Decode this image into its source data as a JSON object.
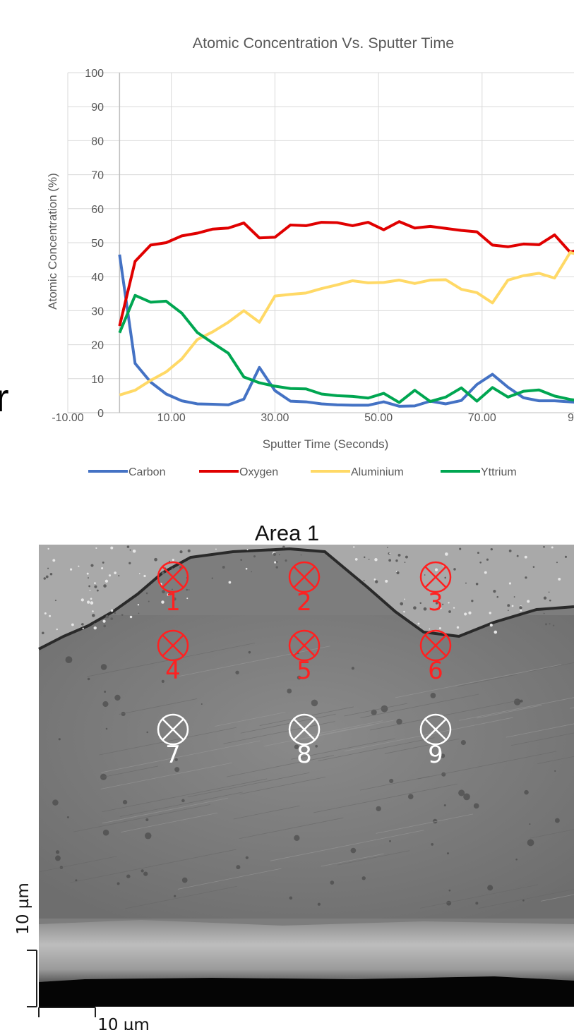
{
  "chart_data": {
    "type": "line",
    "title": "Atomic Concentration Vs. Sputter Time",
    "xlabel": "Sputter Time (Seconds)",
    "ylabel": "Atomic Concentration (%)",
    "xlim": [
      -10,
      90
    ],
    "ylim": [
      0,
      100
    ],
    "x_ticks": [
      "-10.00",
      "10.00",
      "30.00",
      "50.00",
      "70.00",
      "9"
    ],
    "y_ticks": [
      "0",
      "10",
      "20",
      "30",
      "40",
      "50",
      "60",
      "70",
      "80",
      "90",
      "100"
    ],
    "grid": true,
    "legend_position": "bottom",
    "x": [
      0,
      3,
      6,
      9,
      12,
      15,
      18,
      21,
      24,
      27,
      30,
      33,
      36,
      39,
      42,
      45,
      48,
      51,
      54,
      57,
      60,
      63,
      66,
      69,
      72,
      75,
      78,
      81,
      84,
      87,
      90
    ],
    "series": [
      {
        "name": "Carbon",
        "color": "#4472C4",
        "values": [
          46.5,
          14.5,
          9.0,
          5.5,
          3.5,
          2.6,
          2.5,
          2.3,
          4.0,
          13.3,
          6.5,
          3.4,
          3.2,
          2.6,
          2.3,
          2.2,
          2.2,
          3.2,
          1.9,
          2.0,
          3.4,
          2.6,
          3.6,
          8.3,
          11.3,
          7.5,
          4.4,
          3.5,
          3.5,
          3.2,
          2.9
        ]
      },
      {
        "name": "Oxygen",
        "color": "#E00000",
        "values": [
          25.5,
          44.5,
          49.3,
          50.0,
          52.0,
          52.8,
          54.0,
          54.3,
          55.8,
          51.4,
          51.6,
          55.2,
          55.0,
          56.0,
          55.9,
          55.0,
          56.0,
          53.8,
          56.2,
          54.3,
          54.8,
          54.2,
          53.6,
          53.2,
          49.3,
          48.8,
          49.6,
          49.4,
          52.3,
          47.2,
          48.5
        ]
      },
      {
        "name": "Aluminium",
        "color": "#FFD966",
        "values": [
          5.2,
          6.6,
          9.5,
          12.0,
          15.8,
          21.5,
          23.8,
          26.6,
          30.0,
          26.6,
          34.3,
          34.8,
          35.2,
          36.5,
          37.6,
          38.8,
          38.2,
          38.3,
          39.0,
          38.0,
          39.0,
          39.1,
          36.3,
          35.3,
          32.3,
          39.0,
          40.3,
          41.0,
          39.6,
          47.1,
          46.0
        ]
      },
      {
        "name": "Yttrium",
        "color": "#00A651",
        "values": [
          23.5,
          34.5,
          32.5,
          32.8,
          29.3,
          23.6,
          20.5,
          17.5,
          10.5,
          8.8,
          7.8,
          7.1,
          7.0,
          5.5,
          5.0,
          4.8,
          4.3,
          5.7,
          3.0,
          6.6,
          3.3,
          4.6,
          7.3,
          3.4,
          7.4,
          4.6,
          6.3,
          6.7,
          4.9,
          3.9,
          3.3
        ]
      }
    ]
  },
  "left_fragment": "r",
  "area_title": "Area 1",
  "sem_image": {
    "markers": [
      {
        "label": "1",
        "color": "#ff2020"
      },
      {
        "label": "2",
        "color": "#ff2020"
      },
      {
        "label": "3",
        "color": "#ff2020"
      },
      {
        "label": "4",
        "color": "#ff2020"
      },
      {
        "label": "5",
        "color": "#ff2020"
      },
      {
        "label": "6",
        "color": "#ff2020"
      },
      {
        "label": "7",
        "color": "#ffffff"
      },
      {
        "label": "8",
        "color": "#ffffff"
      },
      {
        "label": "9",
        "color": "#ffffff"
      }
    ],
    "scale_bar_vertical": "10 µm",
    "scale_bar_horizontal": "10 µm"
  }
}
